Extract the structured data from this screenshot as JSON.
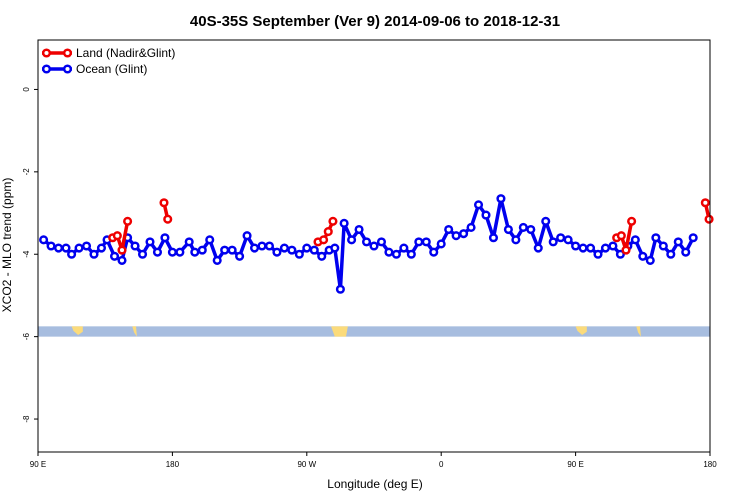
{
  "chart_data": {
    "type": "line",
    "title": "40S-35S September (Ver 9)   2014-09-06 to 2018-12-31",
    "xlabel": "Longitude (deg E)",
    "ylabel": "XCO2 - MLO trend (ppm)",
    "xlim": [
      90,
      450
    ],
    "ylim": [
      -8.8,
      1.2
    ],
    "x_ticks": [
      {
        "value": 90,
        "label": "90 E"
      },
      {
        "value": 162,
        "label": "180"
      },
      {
        "value": 234,
        "label": "90 W"
      },
      {
        "value": 306,
        "label": "0"
      },
      {
        "value": 378,
        "label": "90 E"
      },
      {
        "value": 450,
        "label": "180"
      }
    ],
    "y_ticks": [
      {
        "value": 0,
        "label": "0"
      },
      {
        "value": -2,
        "label": "-2"
      },
      {
        "value": -4,
        "label": "-4"
      },
      {
        "value": -6,
        "label": "-6"
      },
      {
        "value": -8,
        "label": "-8"
      }
    ],
    "grid": false,
    "legend_position": "top-left",
    "map_strip": {
      "y_top": -5.75,
      "y_bottom": -6.0,
      "ocean_color": "#a7bddf",
      "land_color": "#fbdb7b"
    },
    "series": [
      {
        "name": "Land (Nadir&Glint)",
        "color": "#ee0000",
        "segments": [
          [
            [
              130,
              -3.6
            ],
            [
              132.5,
              -3.55
            ],
            [
              135,
              -3.9
            ],
            [
              138,
              -3.2
            ]
          ],
          [
            [
              157.5,
              -2.75
            ],
            [
              159.5,
              -3.15
            ]
          ],
          [
            [
              240,
              -3.7
            ],
            [
              243,
              -3.65
            ],
            [
              245.5,
              -3.45
            ],
            [
              248,
              -3.2
            ]
          ],
          [
            [
              400,
              -3.6
            ],
            [
              402.5,
              -3.55
            ],
            [
              405,
              -3.9
            ],
            [
              408,
              -3.2
            ]
          ],
          [
            [
              447.5,
              -2.75
            ],
            [
              449.5,
              -3.15
            ]
          ]
        ]
      },
      {
        "name": "Ocean (Glint)",
        "color": "#0000ee",
        "segments": [
          [
            [
              93,
              -3.65
            ],
            [
              97,
              -3.8
            ],
            [
              101,
              -3.85
            ],
            [
              105,
              -3.85
            ],
            [
              108,
              -4.0
            ],
            [
              112,
              -3.85
            ],
            [
              116,
              -3.8
            ],
            [
              120,
              -4.0
            ],
            [
              124,
              -3.85
            ],
            [
              127,
              -3.65
            ],
            [
              131,
              -4.05
            ],
            [
              135,
              -4.15
            ],
            [
              138,
              -3.6
            ],
            [
              142,
              -3.8
            ],
            [
              146,
              -4.0
            ],
            [
              150,
              -3.7
            ],
            [
              154,
              -3.95
            ],
            [
              158,
              -3.6
            ],
            [
              162,
              -3.95
            ],
            [
              166,
              -3.95
            ],
            [
              171,
              -3.7
            ],
            [
              174,
              -3.95
            ],
            [
              178,
              -3.9
            ],
            [
              182,
              -3.65
            ],
            [
              186,
              -4.15
            ],
            [
              190,
              -3.9
            ],
            [
              194,
              -3.9
            ],
            [
              198,
              -4.05
            ],
            [
              202,
              -3.55
            ],
            [
              206,
              -3.85
            ],
            [
              210,
              -3.8
            ],
            [
              214,
              -3.8
            ],
            [
              218,
              -3.95
            ],
            [
              222,
              -3.85
            ],
            [
              226,
              -3.9
            ],
            [
              230,
              -4.0
            ],
            [
              234,
              -3.85
            ],
            [
              238,
              -3.9
            ],
            [
              242,
              -4.05
            ],
            [
              246,
              -3.9
            ],
            [
              249,
              -3.85
            ],
            [
              252,
              -4.85
            ],
            [
              254,
              -3.25
            ],
            [
              258,
              -3.65
            ],
            [
              262,
              -3.4
            ],
            [
              266,
              -3.7
            ],
            [
              270,
              -3.8
            ],
            [
              274,
              -3.7
            ],
            [
              278,
              -3.95
            ],
            [
              282,
              -4.0
            ],
            [
              286,
              -3.85
            ],
            [
              290,
              -4.0
            ],
            [
              294,
              -3.7
            ],
            [
              298,
              -3.7
            ],
            [
              302,
              -3.95
            ],
            [
              306,
              -3.75
            ],
            [
              310,
              -3.4
            ],
            [
              314,
              -3.55
            ],
            [
              318,
              -3.5
            ],
            [
              322,
              -3.35
            ],
            [
              326,
              -2.8
            ],
            [
              330,
              -3.05
            ],
            [
              334,
              -3.6
            ],
            [
              338,
              -2.65
            ],
            [
              342,
              -3.4
            ],
            [
              346,
              -3.65
            ],
            [
              350,
              -3.35
            ],
            [
              354,
              -3.4
            ],
            [
              358,
              -3.85
            ],
            [
              362,
              -3.2
            ],
            [
              366,
              -3.7
            ],
            [
              370,
              -3.6
            ],
            [
              374,
              -3.65
            ],
            [
              378,
              -3.8
            ],
            [
              382,
              -3.85
            ],
            [
              386,
              -3.85
            ],
            [
              390,
              -4.0
            ],
            [
              394,
              -3.85
            ],
            [
              398,
              -3.8
            ],
            [
              402,
              -4.0
            ],
            [
              406,
              -3.8
            ],
            [
              410,
              -3.65
            ],
            [
              414,
              -4.05
            ],
            [
              418,
              -4.15
            ],
            [
              421,
              -3.6
            ],
            [
              425,
              -3.8
            ],
            [
              429,
              -4.0
            ],
            [
              433,
              -3.7
            ],
            [
              437,
              -3.95
            ],
            [
              441,
              -3.6
            ]
          ]
        ]
      }
    ]
  }
}
